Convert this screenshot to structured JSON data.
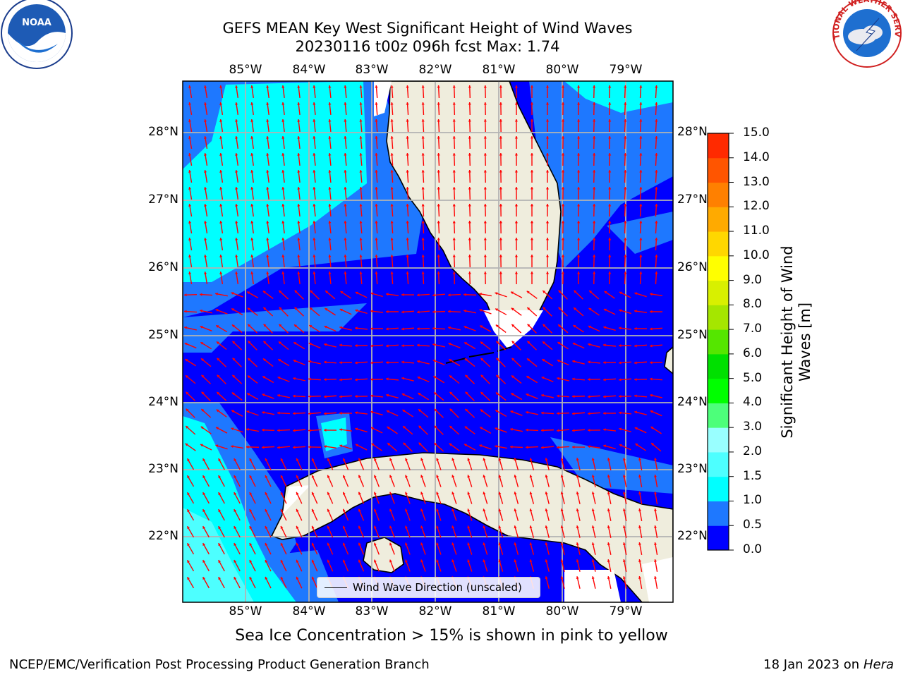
{
  "title": {
    "line1": "GEFS MEAN Key West Significant Height of Wind Waves",
    "line2": "20230116 t00z 096h fcst   Max: 1.74"
  },
  "longitude_labels": [
    "85°W",
    "84°W",
    "83°W",
    "82°W",
    "81°W",
    "80°W",
    "79°W"
  ],
  "latitude_labels": [
    "28°N",
    "27°N",
    "26°N",
    "25°N",
    "24°N",
    "23°N",
    "22°N"
  ],
  "colorbar": {
    "label_line1": "Significant Height of Wind",
    "label_line2": "Waves [m]",
    "ticks": [
      "0.0",
      "0.5",
      "1.0",
      "1.5",
      "2.0",
      "3.0",
      "4.0",
      "5.0",
      "6.0",
      "7.0",
      "8.0",
      "9.0",
      "10.0",
      "11.0",
      "12.0",
      "13.0",
      "14.0",
      "15.0"
    ],
    "colors": [
      "#0000ff",
      "#1e78ff",
      "#00ffff",
      "#4dffff",
      "#99ffff",
      "#4dff7a",
      "#00ff00",
      "#00e000",
      "#55e600",
      "#a5e600",
      "#d8f000",
      "#ffff00",
      "#ffd700",
      "#ffaa00",
      "#ff8000",
      "#ff5500",
      "#ff2a00"
    ]
  },
  "legend": {
    "label": "Wind Wave Direction (unscaled)"
  },
  "footer": {
    "note": "Sea Ice Concentration > 15% is shown in pink to yellow",
    "left": "NCEP/EMC/Verification Post Processing Product Generation Branch",
    "right_prefix": "18 Jan 2023 on ",
    "right_host": "Hera"
  },
  "logos": {
    "noaa_text": "NOAA",
    "nws_text": "NATIONAL WEATHER SERVICE"
  },
  "colors": {
    "land": "#efeddd",
    "arrow": "#ff0000",
    "grid": "#b3b3b3",
    "wave_0_05": "#0000ff",
    "wave_05_10": "#1e78ff",
    "wave_10_15": "#00ffff",
    "wave_15_20": "#4dffff"
  }
}
